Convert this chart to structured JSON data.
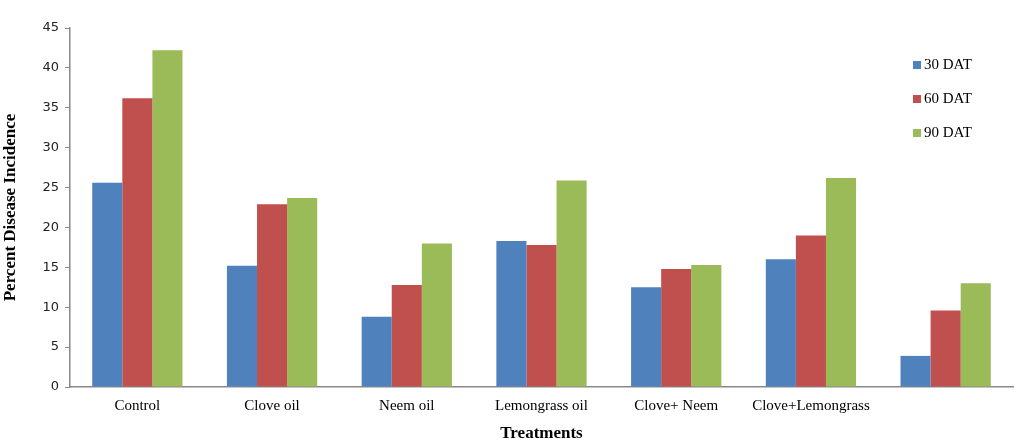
{
  "chart_data": {
    "type": "bar",
    "xlabel": "Treatments",
    "ylabel": "Percent Disease Incidence",
    "categories": [
      "Control",
      "Clove oil",
      "Neem oil",
      "Lemongrass oil",
      "Clove+ Neem",
      "Clove+Lemongrass",
      null
    ],
    "series": [
      {
        "name": "30 DAT",
        "color": "#4f81bd",
        "values": [
          25.6,
          15.2,
          8.8,
          18.3,
          12.5,
          16.0,
          3.9
        ]
      },
      {
        "name": "60 DAT",
        "color": "#c0504d",
        "values": [
          36.2,
          22.9,
          12.8,
          17.8,
          14.8,
          19.0,
          9.6
        ]
      },
      {
        "name": "90 DAT",
        "color": "#9bbb59",
        "values": [
          42.2,
          23.7,
          18.0,
          25.9,
          15.3,
          26.2,
          13.0
        ]
      }
    ],
    "ylim": [
      0,
      45
    ],
    "yticks": [
      0,
      5,
      10,
      15,
      20,
      25,
      30,
      35,
      40,
      45
    ],
    "legend": "top right"
  }
}
